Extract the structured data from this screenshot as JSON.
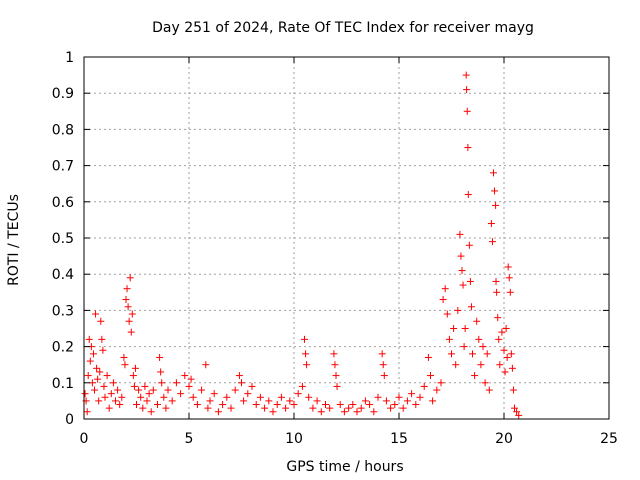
{
  "chart_data": {
    "type": "scatter",
    "title": "Day 251 of 2024, Rate Of TEC Index for receiver mayg",
    "xlabel": "GPS time / hours",
    "ylabel": "ROTI / TECUs",
    "xlim": [
      0,
      25
    ],
    "ylim": [
      0,
      1
    ],
    "xticks": [
      0,
      5,
      10,
      15,
      20,
      25
    ],
    "yticks": [
      0,
      0.1,
      0.2,
      0.3,
      0.4,
      0.5,
      0.6,
      0.7,
      0.8,
      0.9,
      1
    ],
    "grid": true,
    "marker": "plus",
    "color": "#ff0000",
    "series": [
      {
        "points": [
          [
            0.05,
            0.07
          ],
          [
            0.1,
            0.05
          ],
          [
            0.15,
            0.02
          ],
          [
            0.2,
            0.12
          ],
          [
            0.25,
            0.22
          ],
          [
            0.3,
            0.16
          ],
          [
            0.35,
            0.2
          ],
          [
            0.4,
            0.1
          ],
          [
            0.45,
            0.18
          ],
          [
            0.5,
            0.08
          ],
          [
            0.55,
            0.29
          ],
          [
            0.6,
            0.14
          ],
          [
            0.65,
            0.11
          ],
          [
            0.7,
            0.05
          ],
          [
            0.75,
            0.13
          ],
          [
            0.8,
            0.27
          ],
          [
            0.85,
            0.22
          ],
          [
            0.9,
            0.19
          ],
          [
            0.95,
            0.09
          ],
          [
            1.0,
            0.06
          ],
          [
            1.1,
            0.12
          ],
          [
            1.2,
            0.03
          ],
          [
            1.3,
            0.07
          ],
          [
            1.4,
            0.1
          ],
          [
            1.5,
            0.05
          ],
          [
            1.6,
            0.08
          ],
          [
            1.7,
            0.04
          ],
          [
            1.8,
            0.06
          ],
          [
            1.9,
            0.17
          ],
          [
            1.95,
            0.15
          ],
          [
            2.0,
            0.33
          ],
          [
            2.05,
            0.36
          ],
          [
            2.1,
            0.31
          ],
          [
            2.15,
            0.27
          ],
          [
            2.2,
            0.39
          ],
          [
            2.25,
            0.24
          ],
          [
            2.3,
            0.29
          ],
          [
            2.35,
            0.12
          ],
          [
            2.4,
            0.09
          ],
          [
            2.45,
            0.14
          ],
          [
            2.5,
            0.04
          ],
          [
            2.6,
            0.08
          ],
          [
            2.7,
            0.06
          ],
          [
            2.8,
            0.03
          ],
          [
            2.9,
            0.09
          ],
          [
            3.0,
            0.05
          ],
          [
            3.1,
            0.07
          ],
          [
            3.2,
            0.02
          ],
          [
            3.3,
            0.08
          ],
          [
            3.5,
            0.04
          ],
          [
            3.6,
            0.17
          ],
          [
            3.65,
            0.13
          ],
          [
            3.7,
            0.1
          ],
          [
            3.8,
            0.06
          ],
          [
            3.9,
            0.03
          ],
          [
            4.0,
            0.08
          ],
          [
            4.2,
            0.05
          ],
          [
            4.4,
            0.1
          ],
          [
            4.6,
            0.07
          ],
          [
            4.8,
            0.12
          ],
          [
            5.0,
            0.09
          ],
          [
            5.1,
            0.11
          ],
          [
            5.2,
            0.06
          ],
          [
            5.4,
            0.04
          ],
          [
            5.6,
            0.08
          ],
          [
            5.8,
            0.15
          ],
          [
            5.9,
            0.03
          ],
          [
            6.0,
            0.05
          ],
          [
            6.2,
            0.07
          ],
          [
            6.4,
            0.02
          ],
          [
            6.6,
            0.04
          ],
          [
            6.8,
            0.06
          ],
          [
            7.0,
            0.03
          ],
          [
            7.2,
            0.08
          ],
          [
            7.4,
            0.12
          ],
          [
            7.5,
            0.1
          ],
          [
            7.6,
            0.05
          ],
          [
            7.8,
            0.07
          ],
          [
            8.0,
            0.09
          ],
          [
            8.2,
            0.04
          ],
          [
            8.4,
            0.06
          ],
          [
            8.6,
            0.03
          ],
          [
            8.8,
            0.05
          ],
          [
            9.0,
            0.02
          ],
          [
            9.2,
            0.04
          ],
          [
            9.4,
            0.06
          ],
          [
            9.6,
            0.03
          ],
          [
            9.8,
            0.05
          ],
          [
            10.0,
            0.04
          ],
          [
            10.2,
            0.07
          ],
          [
            10.4,
            0.09
          ],
          [
            10.5,
            0.22
          ],
          [
            10.55,
            0.18
          ],
          [
            10.6,
            0.15
          ],
          [
            10.7,
            0.06
          ],
          [
            10.9,
            0.03
          ],
          [
            11.1,
            0.05
          ],
          [
            11.3,
            0.02
          ],
          [
            11.5,
            0.04
          ],
          [
            11.7,
            0.03
          ],
          [
            11.9,
            0.18
          ],
          [
            11.95,
            0.15
          ],
          [
            12.0,
            0.12
          ],
          [
            12.05,
            0.09
          ],
          [
            12.2,
            0.04
          ],
          [
            12.4,
            0.02
          ],
          [
            12.6,
            0.03
          ],
          [
            12.8,
            0.04
          ],
          [
            13.0,
            0.02
          ],
          [
            13.2,
            0.03
          ],
          [
            13.4,
            0.05
          ],
          [
            13.6,
            0.04
          ],
          [
            13.8,
            0.02
          ],
          [
            14.0,
            0.06
          ],
          [
            14.2,
            0.18
          ],
          [
            14.25,
            0.15
          ],
          [
            14.3,
            0.12
          ],
          [
            14.4,
            0.05
          ],
          [
            14.6,
            0.03
          ],
          [
            14.8,
            0.04
          ],
          [
            15.0,
            0.06
          ],
          [
            15.2,
            0.03
          ],
          [
            15.4,
            0.05
          ],
          [
            15.6,
            0.07
          ],
          [
            15.8,
            0.04
          ],
          [
            16.0,
            0.06
          ],
          [
            16.2,
            0.09
          ],
          [
            16.4,
            0.17
          ],
          [
            16.5,
            0.12
          ],
          [
            16.6,
            0.05
          ],
          [
            16.8,
            0.08
          ],
          [
            17.0,
            0.1
          ],
          [
            17.1,
            0.33
          ],
          [
            17.2,
            0.36
          ],
          [
            17.3,
            0.29
          ],
          [
            17.4,
            0.22
          ],
          [
            17.5,
            0.18
          ],
          [
            17.6,
            0.25
          ],
          [
            17.7,
            0.15
          ],
          [
            17.8,
            0.3
          ],
          [
            17.9,
            0.51
          ],
          [
            17.95,
            0.45
          ],
          [
            18.0,
            0.41
          ],
          [
            18.05,
            0.37
          ],
          [
            18.1,
            0.2
          ],
          [
            18.15,
            0.25
          ],
          [
            18.2,
            0.95
          ],
          [
            18.22,
            0.91
          ],
          [
            18.25,
            0.85
          ],
          [
            18.28,
            0.75
          ],
          [
            18.3,
            0.62
          ],
          [
            18.35,
            0.48
          ],
          [
            18.4,
            0.38
          ],
          [
            18.45,
            0.31
          ],
          [
            18.5,
            0.18
          ],
          [
            18.6,
            0.12
          ],
          [
            18.7,
            0.27
          ],
          [
            18.8,
            0.22
          ],
          [
            18.9,
            0.15
          ],
          [
            19.0,
            0.2
          ],
          [
            19.1,
            0.1
          ],
          [
            19.2,
            0.18
          ],
          [
            19.3,
            0.08
          ],
          [
            19.4,
            0.54
          ],
          [
            19.45,
            0.49
          ],
          [
            19.5,
            0.68
          ],
          [
            19.55,
            0.63
          ],
          [
            19.6,
            0.59
          ],
          [
            19.62,
            0.38
          ],
          [
            19.65,
            0.35
          ],
          [
            19.7,
            0.28
          ],
          [
            19.75,
            0.22
          ],
          [
            19.8,
            0.15
          ],
          [
            19.9,
            0.24
          ],
          [
            20.0,
            0.19
          ],
          [
            20.05,
            0.13
          ],
          [
            20.1,
            0.25
          ],
          [
            20.15,
            0.17
          ],
          [
            20.2,
            0.42
          ],
          [
            20.25,
            0.39
          ],
          [
            20.3,
            0.35
          ],
          [
            20.35,
            0.18
          ],
          [
            20.4,
            0.14
          ],
          [
            20.45,
            0.08
          ],
          [
            20.5,
            0.03
          ],
          [
            20.6,
            0.02
          ],
          [
            20.7,
            0.01
          ]
        ]
      }
    ]
  }
}
